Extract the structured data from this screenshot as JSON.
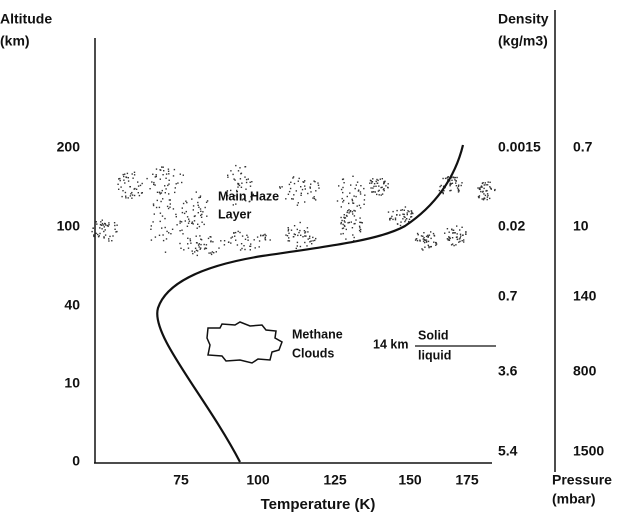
{
  "y_axis": {
    "title": [
      "Altitude",
      "(km)"
    ],
    "ticks": [
      "200",
      "100",
      "40",
      "10",
      "0"
    ]
  },
  "x_axis": {
    "title": "Temperature (K)",
    "ticks": [
      "75",
      "100",
      "125",
      "150",
      "175"
    ]
  },
  "density": {
    "title": [
      "Density",
      "(kg/m3)"
    ],
    "values": [
      "0.0015",
      "0.02",
      "0.7",
      "3.6",
      "5.4"
    ]
  },
  "pressure": {
    "title": [
      "Pressure",
      "(mbar)"
    ],
    "values": [
      "0.7",
      "10",
      "140",
      "800",
      "1500"
    ]
  },
  "annotations": {
    "haze": [
      "Main Haze",
      "Layer"
    ],
    "clouds": [
      "Methane",
      "Clouds"
    ],
    "boundary_altitude": "14 km",
    "upper_phase": "Solid",
    "lower_phase": "liquid"
  }
}
